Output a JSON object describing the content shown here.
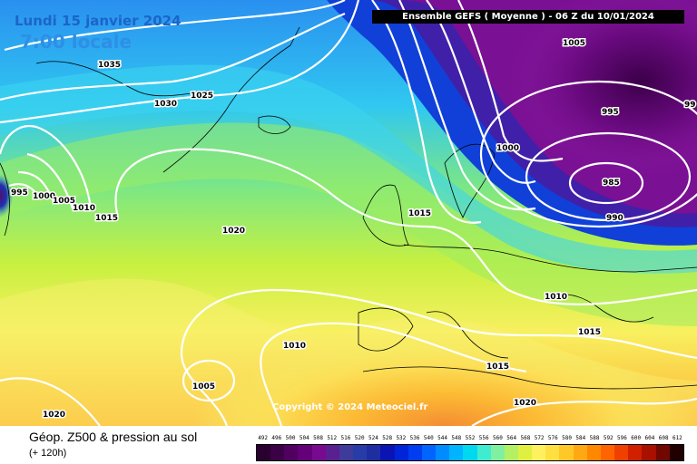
{
  "header": {
    "date": "Lundi 15 janvier 2024",
    "time": "7:00 locale",
    "ensemble": "Ensemble GEFS  ( Moyenne )  -  06 Z du 10/01/2024"
  },
  "caption": {
    "title": "Géop. Z500 & pression au sol",
    "subtitle": "(+ 120h)"
  },
  "copyright": "Copyright © 2024 Meteociel.fr",
  "isobar_labels": [
    "1035",
    "1030",
    "1025",
    "1005",
    "995",
    "1000",
    "1005",
    "1010",
    "1015",
    "1020",
    "1000",
    "995",
    "99",
    "985",
    "990",
    "1015",
    "1010",
    "1015",
    "1015",
    "1020",
    "1010",
    "1005",
    "1020"
  ],
  "scale": {
    "labels": [
      "492",
      "496",
      "500",
      "504",
      "508",
      "512",
      "516",
      "520",
      "524",
      "528",
      "532",
      "536",
      "540",
      "544",
      "548",
      "552",
      "556",
      "560",
      "564",
      "568",
      "572",
      "576",
      "580",
      "584",
      "588",
      "592",
      "596",
      "600",
      "604",
      "608",
      "612"
    ],
    "colors": [
      "#2a0030",
      "#3c0046",
      "#50005e",
      "#640078",
      "#780a90",
      "#5a2090",
      "#403a9a",
      "#283ca8",
      "#1e2ea0",
      "#0a14b4",
      "#0024d8",
      "#003cf0",
      "#0064ff",
      "#008cff",
      "#00b4ff",
      "#00d8f0",
      "#40ecd0",
      "#80f0a0",
      "#b4f064",
      "#e0f040",
      "#fff060",
      "#ffe040",
      "#ffc828",
      "#ffa814",
      "#ff8800",
      "#ff6400",
      "#f04000",
      "#d02000",
      "#a81000",
      "#700800",
      "#200000"
    ]
  }
}
